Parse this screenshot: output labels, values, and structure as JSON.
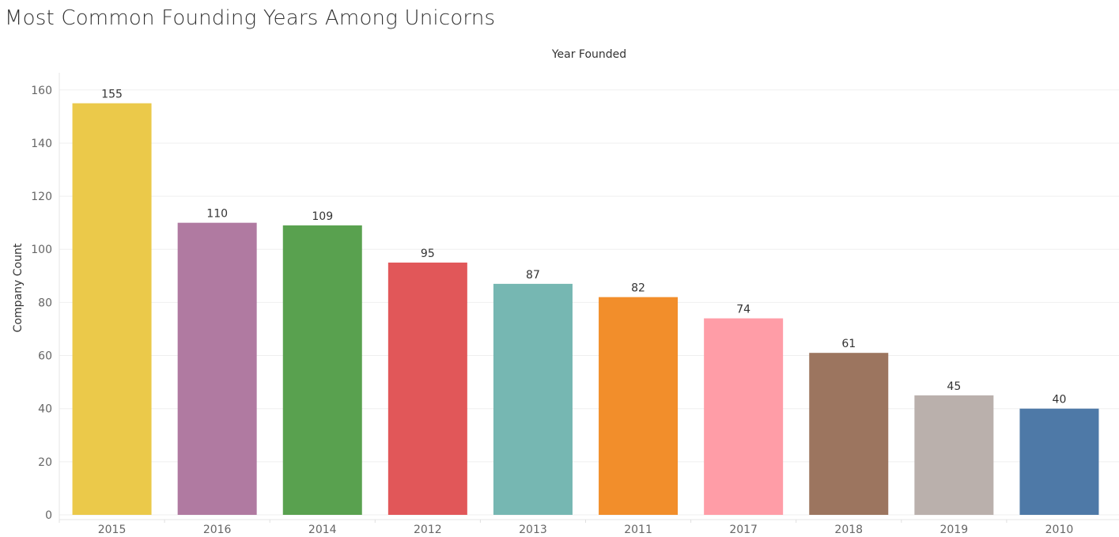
{
  "title": "Most Common Founding Years Among Unicorns",
  "chart_data": {
    "type": "bar",
    "title": "Most Common Founding Years Among Unicorns",
    "xlabel": "Year Founded",
    "ylabel": "Company Count",
    "categories": [
      "2015",
      "2016",
      "2014",
      "2012",
      "2013",
      "2011",
      "2017",
      "2018",
      "2019",
      "2010"
    ],
    "values": [
      155,
      110,
      109,
      95,
      87,
      82,
      74,
      61,
      45,
      40
    ],
    "colors": [
      "#EBC94A",
      "#B07AA1",
      "#59A14F",
      "#E15759",
      "#76B7B2",
      "#F28E2B",
      "#FF9DA7",
      "#9C755F",
      "#BAB0AC",
      "#4E79A7"
    ],
    "ylim": [
      0,
      165
    ],
    "yticks": [
      0,
      20,
      40,
      60,
      80,
      100,
      120,
      140,
      160
    ],
    "grid": true,
    "legend": "none"
  }
}
